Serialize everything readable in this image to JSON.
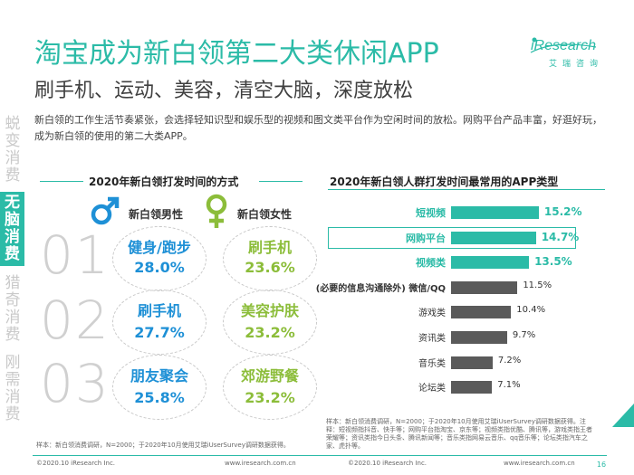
{
  "header": {
    "title": "淘宝成为新白领第二大类休闲APP",
    "subtitle": "刷手机、运动、美容，清空大脑，深度放松"
  },
  "logo": {
    "brand": "iResearch",
    "cn": "艾瑞咨询"
  },
  "sidebar": {
    "items": [
      {
        "label": "蜕变消费",
        "chars": [
          "蜕",
          "变",
          "消",
          "费"
        ],
        "active": false
      },
      {
        "label": "无脑消费",
        "chars": [
          "无",
          "脑",
          "消",
          "费"
        ],
        "active": true
      },
      {
        "label": "猎奇消费",
        "chars": [
          "猎",
          "奇",
          "消",
          "费"
        ],
        "active": false
      },
      {
        "label": "刚需消费",
        "chars": [
          "刚",
          "需",
          "消",
          "费"
        ],
        "active": false
      }
    ]
  },
  "intro": "新白领的工作生活节奏紧张，会选择轻知识型和娱乐型的视频和图文类平台作为空闲时间的放松。网购平台产品丰富，好逛好玩，成为新白领的使用的第二大类APP。",
  "left_panel": {
    "title": "2020年新白领打发时间的方式",
    "male_label": "新白领男性",
    "female_label": "新白领女性",
    "ranks": [
      {
        "num": "01",
        "male": "健身/跑步",
        "male_pct": "28.0%",
        "female": "刷手机",
        "female_pct": "23.6%"
      },
      {
        "num": "02",
        "male": "刷手机",
        "male_pct": "27.7%",
        "female": "美容护肤",
        "female_pct": "23.2%"
      },
      {
        "num": "03",
        "male": "朋友聚会",
        "male_pct": "25.8%",
        "female": "郊游野餐",
        "female_pct": "23.2%"
      }
    ],
    "colors": {
      "male": "#1e90d6",
      "female": "#8cbd3a"
    },
    "icons": [
      "male-symbol-icon",
      "female-symbol-icon"
    ]
  },
  "chart_data": {
    "type": "bar",
    "orientation": "horizontal",
    "title": "2020年新白领人群打发时间最常用的APP类型",
    "categories": [
      "短视频",
      "网购平台",
      "视频类",
      "(必要的信息沟通除外) 微信/QQ",
      "游戏类",
      "资讯类",
      "音乐类",
      "论坛类"
    ],
    "values": [
      15.2,
      14.7,
      13.5,
      11.5,
      10.4,
      9.7,
      7.2,
      7.1
    ],
    "value_labels": [
      "15.2%",
      "14.7%",
      "13.5%",
      "11.5%",
      "10.4%",
      "9.7%",
      "7.2%",
      "7.1%"
    ],
    "highlighted": [
      0,
      1,
      2
    ],
    "highlight_box": 1,
    "colors": {
      "highlight": "#2bbba7",
      "normal": "#5a5a5a"
    },
    "xlim": [
      0,
      16
    ]
  },
  "notes": {
    "right": "样本：新白领消费调研，N=2000；于2020年10月使用艾瑞iUserSurvey调研数据获得。注释：短视频指抖音、快手等；网购平台指淘宝、京东等；视频类指优酷、腾讯等，游戏类指王者荣耀等；资讯类指今日头条、腾讯新闻等；音乐类指网易云音乐、qq音乐等；论坛类指汽车之家、虎扑等。",
    "left": "样本：新白领消费调研，N=2000；于2020年10月使用艾瑞iUserSurvey调研数据获得。"
  },
  "footer": {
    "left": "©2020.10 iResearch Inc.",
    "left_url": "www.iresearch.com.cn",
    "right": "©2020.10 iResearch Inc.",
    "right_url": "www.iresearch.com.cn",
    "page": "16"
  }
}
